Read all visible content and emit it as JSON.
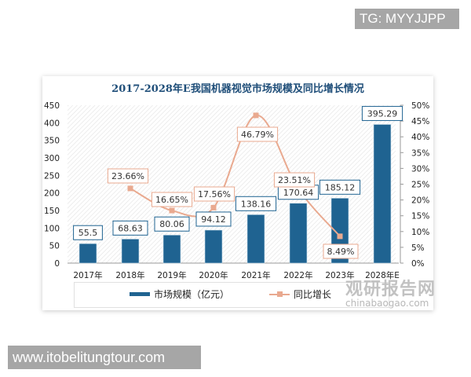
{
  "overlays": {
    "tg_label": "TG: MYYJJPP",
    "site_label": "www.itobelitungtour.com"
  },
  "watermark": {
    "cn": "观研报告网",
    "en": "chinabaogao.com"
  },
  "colors": {
    "bar": "#1f6391",
    "line": "#e9a98f",
    "title": "#1f4e79",
    "overlay_bg": "#a6a6a6"
  },
  "chart_data": {
    "type": "bar",
    "title": "2017-2028年E我国机器视觉市场规模及同比增长情况",
    "categories": [
      "2017年",
      "2018年",
      "2019年",
      "2020年",
      "2021年",
      "2022年",
      "2023年",
      "2028年E"
    ],
    "series": [
      {
        "name": "市场规模（亿元）",
        "type": "bar",
        "axis": "left",
        "values": [
          55.5,
          68.63,
          80.06,
          94.12,
          138.16,
          170.64,
          185.12,
          395.29
        ],
        "labels": [
          "55.5",
          "68.63",
          "80.06",
          "94.12",
          "138.16",
          "170.64",
          "185.12",
          "395.29"
        ]
      },
      {
        "name": "同比增长",
        "type": "line",
        "axis": "right",
        "values": [
          null,
          23.66,
          16.65,
          17.56,
          46.79,
          23.51,
          8.49,
          null
        ],
        "labels": [
          "",
          "23.66%",
          "16.65%",
          "17.56%",
          "46.79%",
          "23.51%",
          "8.49%",
          ""
        ]
      }
    ],
    "left_axis": {
      "ylim": [
        0,
        450
      ],
      "ticks": [
        "0",
        "50",
        "100",
        "150",
        "200",
        "250",
        "300",
        "350",
        "400",
        "450"
      ]
    },
    "right_axis": {
      "ylim": [
        0,
        50
      ],
      "ticks": [
        "0%",
        "5%",
        "10%",
        "15%",
        "20%",
        "25%",
        "30%",
        "35%",
        "40%",
        "45%",
        "50%"
      ]
    },
    "xlabel": "",
    "ylabel": "",
    "legend_position": "bottom",
    "grid": false
  }
}
